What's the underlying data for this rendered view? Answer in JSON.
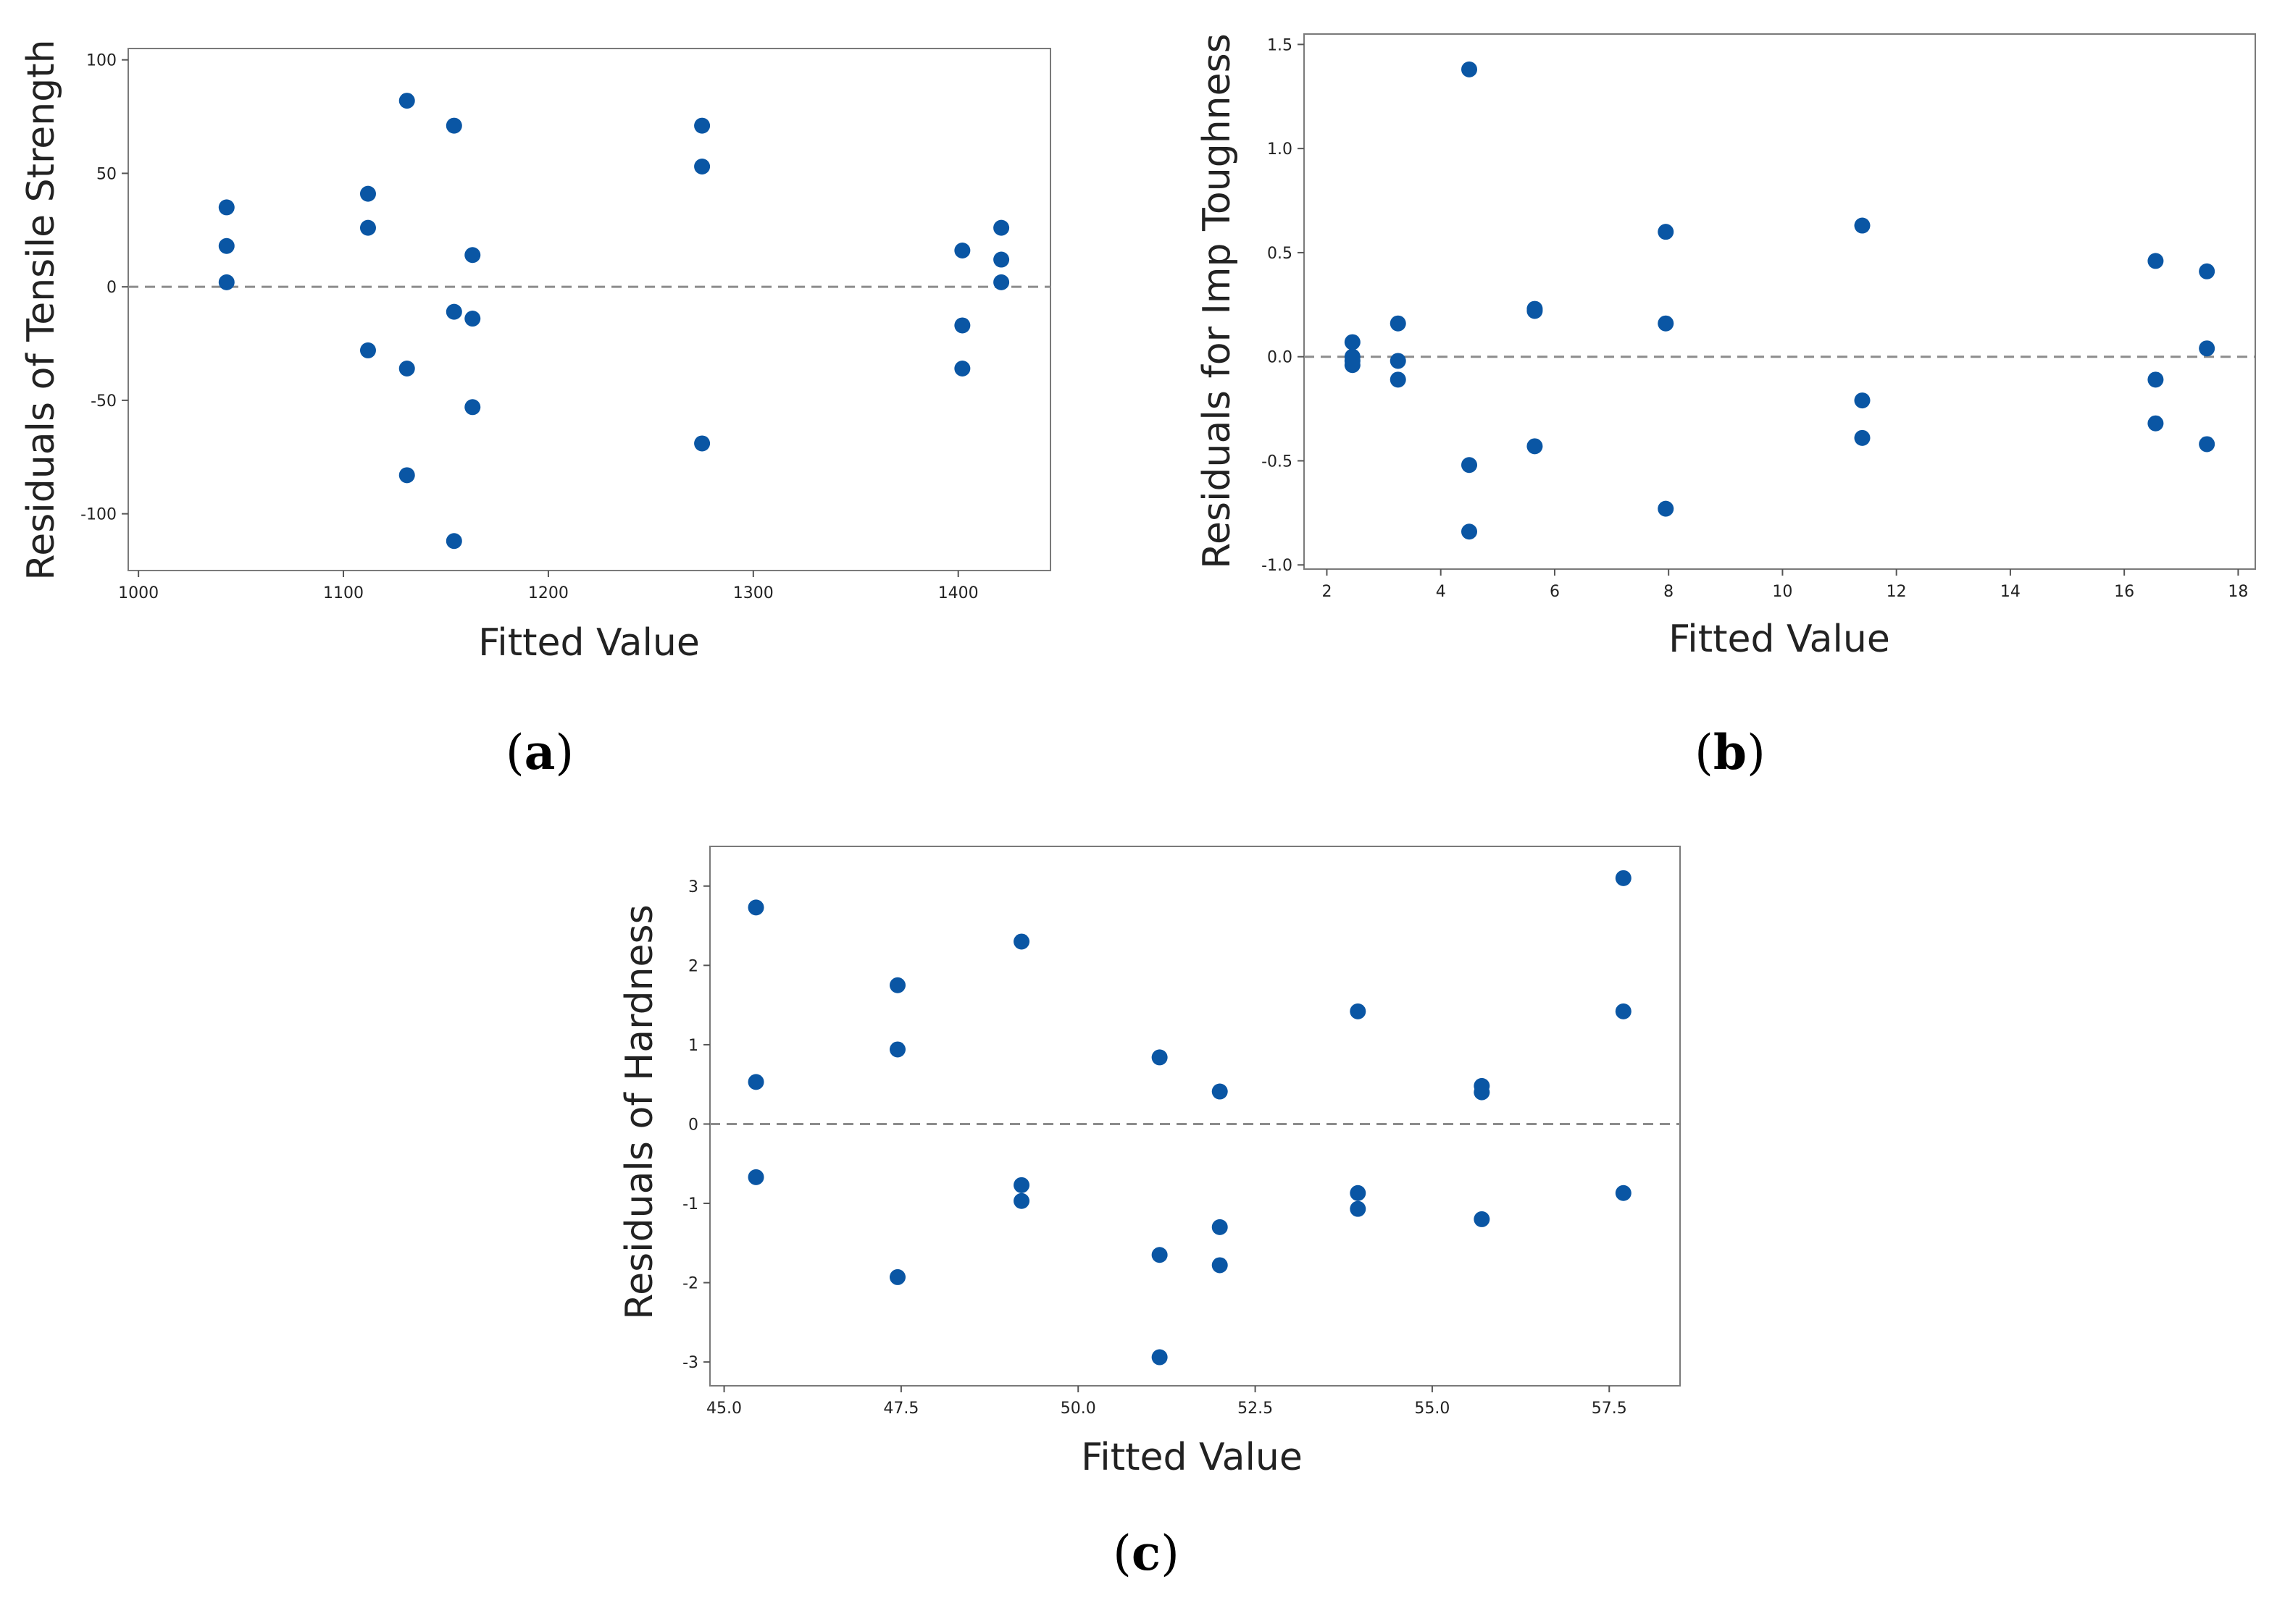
{
  "colors": {
    "marker": "#0a56a4",
    "reference_line": "#8c8c8c",
    "frame": "#7a7a7a"
  },
  "chart_data": [
    {
      "type": "scatter",
      "panel": "a",
      "xlabel": "Fitted Value",
      "ylabel": "Residuals of Tensile Strength",
      "xlim": [
        995,
        1445
      ],
      "ylim": [
        -125,
        105
      ],
      "xticks": [
        1000,
        1100,
        1200,
        1300,
        1400
      ],
      "xtick_labels": [
        "1000",
        "1100",
        "1200",
        "1300",
        "1400"
      ],
      "yticks": [
        -100,
        -50,
        0,
        50,
        100
      ],
      "ytick_labels": [
        "-100",
        "-50",
        "0",
        "50",
        "100"
      ],
      "reference_line": 0,
      "series": [
        {
          "name": "Residuals",
          "x": [
            1043,
            1043,
            1043,
            1112,
            1112,
            1112,
            1131,
            1131,
            1131,
            1154,
            1154,
            1154,
            1163,
            1163,
            1163,
            1275,
            1275,
            1275,
            1402,
            1402,
            1402,
            1421,
            1421,
            1421
          ],
          "y": [
            35,
            18,
            2,
            41,
            26,
            -28,
            82,
            -36,
            -83,
            71,
            -11,
            -112,
            14,
            -14,
            -53,
            71,
            53,
            -69,
            16,
            -17,
            -36,
            26,
            12,
            2
          ]
        }
      ]
    },
    {
      "type": "scatter",
      "panel": "b",
      "xlabel": "Fitted Value",
      "ylabel": "Residuals for Imp Toughness",
      "xlim": [
        1.6,
        18.3
      ],
      "ylim": [
        -1.02,
        1.55
      ],
      "xticks": [
        2,
        4,
        6,
        8,
        10,
        12,
        14,
        16,
        18
      ],
      "xtick_labels": [
        "2",
        "4",
        "6",
        "8",
        "10",
        "12",
        "14",
        "16",
        "18"
      ],
      "yticks": [
        -1.0,
        -0.5,
        0.0,
        0.5,
        1.0,
        1.5
      ],
      "ytick_labels": [
        "-1.0",
        "-0.5",
        "0.0",
        "0.5",
        "1.0",
        "1.5"
      ],
      "reference_line": 0,
      "series": [
        {
          "name": "Residuals",
          "x": [
            2.45,
            2.45,
            2.45,
            2.45,
            3.25,
            3.25,
            3.25,
            4.5,
            4.5,
            4.5,
            5.65,
            5.65,
            5.65,
            7.95,
            7.95,
            7.95,
            11.4,
            11.4,
            11.4,
            16.55,
            16.55,
            16.55,
            17.45,
            17.45,
            17.45
          ],
          "y": [
            0.07,
            0.0,
            -0.02,
            -0.04,
            0.16,
            -0.02,
            -0.11,
            1.38,
            -0.52,
            -0.84,
            0.23,
            0.22,
            -0.43,
            0.6,
            0.16,
            -0.73,
            0.63,
            -0.21,
            -0.39,
            0.46,
            -0.11,
            -0.32,
            0.41,
            0.04,
            -0.42
          ]
        }
      ]
    },
    {
      "type": "scatter",
      "panel": "c",
      "xlabel": "Fitted Value",
      "ylabel": "Residuals of Hardness",
      "xlim": [
        44.8,
        58.5
      ],
      "ylim": [
        -3.3,
        3.5
      ],
      "xticks": [
        45.0,
        47.5,
        50.0,
        52.5,
        55.0,
        57.5
      ],
      "xtick_labels": [
        "45.0",
        "47.5",
        "50.0",
        "52.5",
        "55.0",
        "57.5"
      ],
      "yticks": [
        -3,
        -2,
        -1,
        0,
        1,
        2,
        3
      ],
      "ytick_labels": [
        "-3",
        "-2",
        "-1",
        "0",
        "1",
        "2",
        "3"
      ],
      "reference_line": 0,
      "series": [
        {
          "name": "Residuals",
          "x": [
            45.45,
            45.45,
            45.45,
            47.45,
            47.45,
            47.45,
            49.2,
            49.2,
            49.2,
            51.15,
            51.15,
            51.15,
            52.0,
            52.0,
            52.0,
            53.95,
            53.95,
            53.95,
            55.7,
            55.7,
            55.7,
            57.7,
            57.7,
            57.7
          ],
          "y": [
            2.73,
            0.53,
            -0.67,
            1.75,
            0.94,
            -1.93,
            2.3,
            -0.77,
            -0.97,
            0.84,
            -1.65,
            -2.94,
            0.41,
            -1.3,
            -1.78,
            1.42,
            -0.87,
            -1.07,
            0.48,
            0.4,
            -1.2,
            3.1,
            1.42,
            -0.87
          ]
        }
      ]
    }
  ],
  "captions": [
    {
      "open": "(",
      "letter": "a",
      "close": ")"
    },
    {
      "open": "(",
      "letter": "b",
      "close": ")"
    },
    {
      "open": "(",
      "letter": "c",
      "close": ")"
    }
  ]
}
